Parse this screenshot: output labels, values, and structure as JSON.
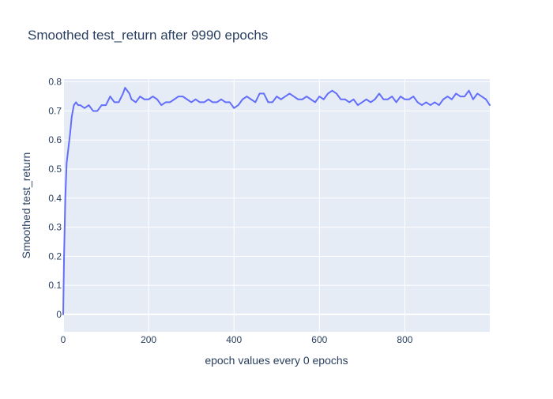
{
  "chart_data": {
    "type": "line",
    "title": "Smoothed test_return after 9990 epochs",
    "xlabel": "epoch values every 0 epochs",
    "ylabel": "Smoothed test_return",
    "xlim": [
      0,
      999
    ],
    "ylim": [
      -0.06,
      0.81
    ],
    "x_ticks": [
      0,
      200,
      400,
      600,
      800
    ],
    "y_ticks": [
      0,
      0.1,
      0.2,
      0.3,
      0.4,
      0.5,
      0.6,
      0.7,
      0.8
    ],
    "y_tick_labels": [
      "0",
      "0.1",
      "0.2",
      "0.3",
      "0.4",
      "0.5",
      "0.6",
      "0.7",
      "0.8"
    ],
    "grid": true,
    "legend": "none",
    "colors": {
      "plot_background": "#e5ecf6",
      "grid": "#ffffff",
      "line": "#636efa",
      "text": "#2a3f5f"
    },
    "series": [
      {
        "x": [
          0,
          2,
          5,
          8,
          12,
          16,
          20,
          25,
          30,
          35,
          40,
          50,
          60,
          70,
          80,
          90,
          100,
          110,
          120,
          130,
          140,
          145,
          150,
          155,
          160,
          170,
          180,
          190,
          200,
          210,
          220,
          230,
          240,
          250,
          260,
          270,
          280,
          290,
          300,
          310,
          320,
          330,
          340,
          350,
          360,
          370,
          380,
          390,
          400,
          410,
          420,
          430,
          440,
          450,
          460,
          470,
          480,
          490,
          500,
          510,
          520,
          530,
          540,
          550,
          560,
          570,
          580,
          590,
          600,
          610,
          620,
          630,
          640,
          650,
          660,
          670,
          680,
          690,
          700,
          710,
          720,
          730,
          740,
          750,
          760,
          770,
          780,
          790,
          800,
          810,
          820,
          830,
          840,
          850,
          860,
          870,
          880,
          890,
          900,
          910,
          920,
          930,
          940,
          950,
          960,
          970,
          980,
          990,
          999
        ],
        "y": [
          0.0,
          0.2,
          0.4,
          0.52,
          0.57,
          0.62,
          0.68,
          0.72,
          0.73,
          0.72,
          0.72,
          0.71,
          0.72,
          0.7,
          0.7,
          0.72,
          0.72,
          0.75,
          0.73,
          0.73,
          0.76,
          0.78,
          0.77,
          0.76,
          0.74,
          0.73,
          0.75,
          0.74,
          0.74,
          0.75,
          0.74,
          0.72,
          0.73,
          0.73,
          0.74,
          0.75,
          0.75,
          0.74,
          0.73,
          0.74,
          0.73,
          0.73,
          0.74,
          0.73,
          0.73,
          0.74,
          0.73,
          0.73,
          0.71,
          0.72,
          0.74,
          0.75,
          0.74,
          0.73,
          0.76,
          0.76,
          0.73,
          0.73,
          0.75,
          0.74,
          0.75,
          0.76,
          0.75,
          0.74,
          0.74,
          0.75,
          0.74,
          0.73,
          0.75,
          0.74,
          0.76,
          0.77,
          0.76,
          0.74,
          0.74,
          0.73,
          0.74,
          0.72,
          0.73,
          0.74,
          0.73,
          0.74,
          0.76,
          0.74,
          0.74,
          0.75,
          0.73,
          0.75,
          0.74,
          0.74,
          0.75,
          0.73,
          0.72,
          0.73,
          0.72,
          0.73,
          0.72,
          0.74,
          0.75,
          0.74,
          0.76,
          0.75,
          0.75,
          0.77,
          0.74,
          0.76,
          0.75,
          0.74,
          0.72
        ]
      }
    ]
  }
}
